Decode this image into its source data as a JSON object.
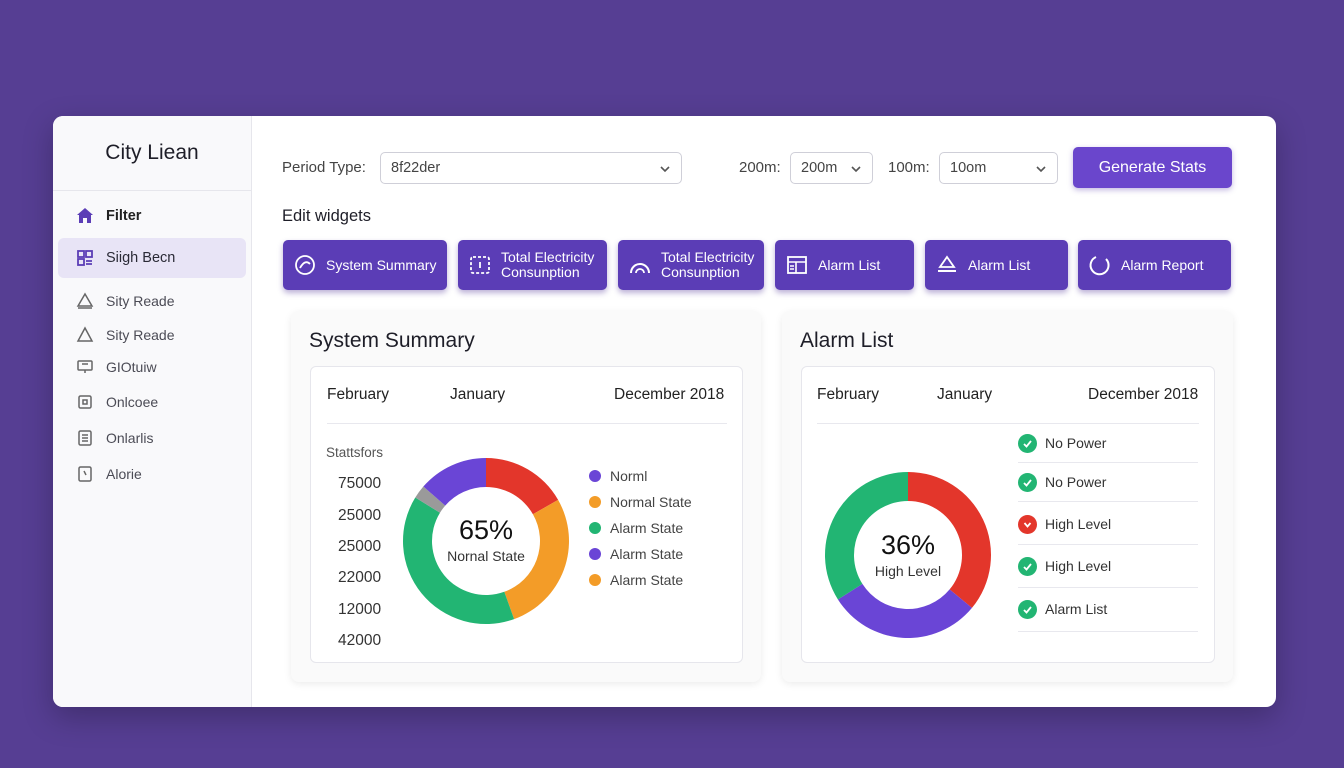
{
  "app": {
    "title": "City Liean"
  },
  "sidebar": {
    "items": [
      {
        "label": "Filter",
        "icon": "home-icon"
      },
      {
        "label": "Siigh Becn",
        "icon": "grid-icon"
      },
      {
        "label": "Sity Reade",
        "icon": "warning-icon"
      },
      {
        "label": "Sity Reade",
        "icon": "triangle-icon"
      },
      {
        "label": "GIOtuiw",
        "icon": "display-icon"
      },
      {
        "label": "Onlcoee",
        "icon": "square-icon"
      },
      {
        "label": "Onlarlis",
        "icon": "document-icon"
      },
      {
        "label": "Alorie",
        "icon": "note-icon"
      }
    ]
  },
  "toolbar": {
    "period_label": "Period Type:",
    "period_value": "8f22der",
    "zoom1_label": "200m:",
    "zoom1_value": "200m",
    "zoom2_label": "100m:",
    "zoom2_value": "10om",
    "generate_label": "Generate Stats"
  },
  "widgets": {
    "title": "Edit widgets",
    "buttons": [
      {
        "line1": "System Summary",
        "line2": "",
        "icon": "loop-icon"
      },
      {
        "line1": "Total Electricity",
        "line2": "Consunption",
        "icon": "meter-icon"
      },
      {
        "line1": "Total Electricity",
        "line2": "Consunption",
        "icon": "gauge-icon"
      },
      {
        "line1": "Alarm List",
        "line2": "",
        "icon": "panel-icon"
      },
      {
        "line1": "Alarm List",
        "line2": "",
        "icon": "bell-icon"
      },
      {
        "line1": "Alarm Report",
        "line2": "",
        "icon": "circle-icon"
      }
    ]
  },
  "summary": {
    "title": "System Summary",
    "columns": [
      "February",
      "January",
      "December 2018"
    ],
    "stats_label": "Stattsfors",
    "values": [
      "75000",
      "25000",
      "25000",
      "22000",
      "12000",
      "42000"
    ],
    "center_value": "65%",
    "center_label": "Nornal State",
    "legend": [
      {
        "label": "Norml",
        "color": "#6a45d6"
      },
      {
        "label": "Normal State",
        "color": "#f39c28"
      },
      {
        "label": "Alarm State",
        "color": "#22b573"
      },
      {
        "label": "Alarm State",
        "color": "#6a45d6"
      },
      {
        "label": "Alarm State",
        "color": "#f39c28"
      }
    ]
  },
  "alarms": {
    "title": "Alarm List",
    "columns": [
      "February",
      "January",
      "December 2018"
    ],
    "center_value": "36%",
    "center_label": "High Level",
    "items": [
      {
        "label": "No Power",
        "status": "ok",
        "color": "#22b573"
      },
      {
        "label": "No Power",
        "status": "ok",
        "color": "#22b573"
      },
      {
        "label": "High Level",
        "status": "alert",
        "color": "#e3362b"
      },
      {
        "label": "High Level",
        "status": "ok",
        "color": "#22b573"
      },
      {
        "label": "Alarm List",
        "status": "ok",
        "color": "#22b573"
      }
    ]
  },
  "chart_data": [
    {
      "type": "pie",
      "donut": true,
      "categories": [
        "Normal",
        "Orange",
        "Red",
        "Purple",
        "Gray"
      ],
      "values": [
        0.375,
        0.265,
        0.16,
        0.13,
        0.025
      ],
      "colors": [
        "#22b573",
        "#f39c28",
        "#e3362b",
        "#6a45d6",
        "#9a9a9a"
      ]
    },
    {
      "type": "pie",
      "donut": true,
      "categories": [
        "Red",
        "Purple",
        "Green"
      ],
      "values": [
        0.36,
        0.3,
        0.34
      ],
      "colors": [
        "#e3362b",
        "#6a45d6",
        "#22b573"
      ]
    }
  ]
}
